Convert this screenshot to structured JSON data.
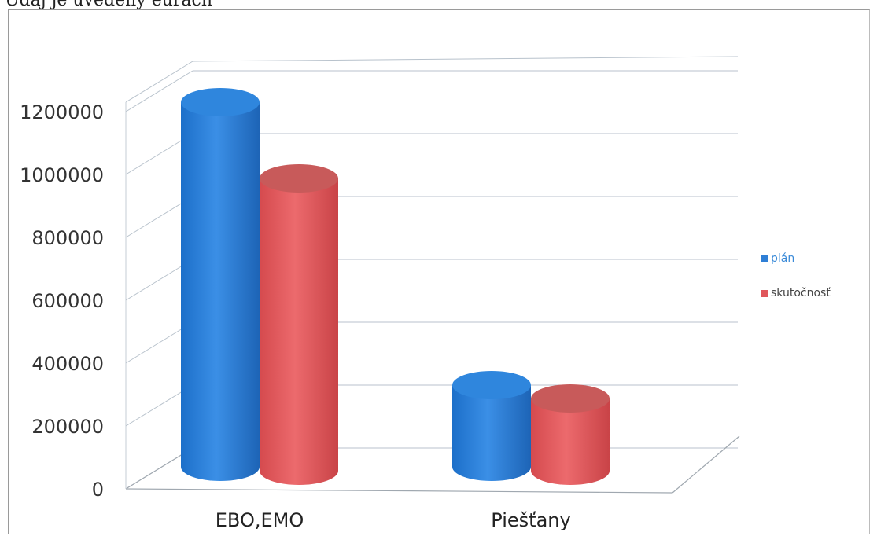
{
  "caption": "Údaj je uvedený  eurách",
  "chart_data": {
    "type": "bar",
    "style": "3d-cylinder",
    "categories": [
      "EBO,EMO",
      "Piešťany"
    ],
    "series": [
      {
        "name": "plán",
        "color": "#2f7fd6",
        "values": [
          1220000,
          320000
        ]
      },
      {
        "name": "skutočnosť",
        "color": "#e0575b",
        "values": [
          990000,
          290000
        ]
      }
    ],
    "ylim": [
      0,
      1200000
    ],
    "yticks": [
      "0",
      "200000",
      "400000",
      "600000",
      "800000",
      "1000000",
      "1200000"
    ],
    "grid": true,
    "legend": "right"
  }
}
